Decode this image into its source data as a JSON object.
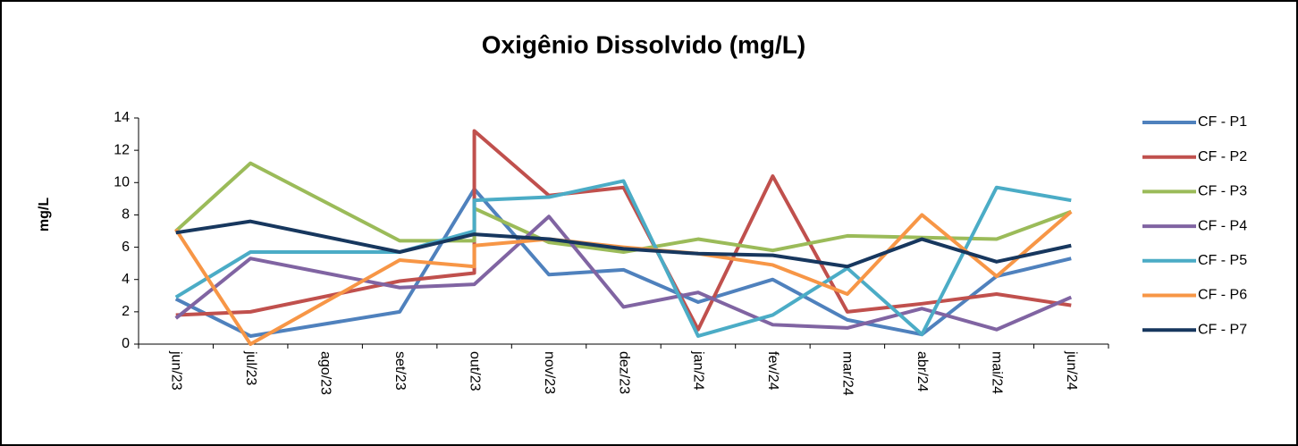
{
  "chart_data": {
    "type": "line",
    "title": "Oxigênio Dissolvido (mg/L)",
    "y_label": "mg/L",
    "xticks": [
      "jun/23",
      "jul/23",
      "ago/23",
      "set/23",
      "out/23",
      "nov/23",
      "dez/23",
      "jan/24",
      "fev/24",
      "mar/24",
      "abr/24",
      "mai/24",
      "jun/24"
    ],
    "x": [
      "jun/23",
      "jul/23",
      "set/23",
      "out/23",
      "out/23",
      "nov/23",
      "dez/23",
      "jan/24",
      "fev/24",
      "mar/24",
      "abr/24",
      "mai/24",
      "jun/24"
    ],
    "series": [
      {
        "name": "CF - P1",
        "color": "#4f81bd",
        "values": [
          2.8,
          0.5,
          2.0,
          9.6,
          9.6,
          4.3,
          4.6,
          2.6,
          4.0,
          1.5,
          0.6,
          4.2,
          5.3
        ]
      },
      {
        "name": "CF - P2",
        "color": "#c0504d",
        "values": [
          1.8,
          2.0,
          3.9,
          4.4,
          13.2,
          9.2,
          9.7,
          0.9,
          10.4,
          2.0,
          2.5,
          3.1,
          2.4
        ]
      },
      {
        "name": "CF - P3",
        "color": "#9bbb59",
        "values": [
          7.0,
          11.2,
          6.4,
          6.4,
          8.4,
          6.3,
          5.7,
          6.5,
          5.8,
          6.7,
          6.6,
          6.5,
          8.2
        ]
      },
      {
        "name": "CF - P4",
        "color": "#8064a2",
        "values": [
          1.6,
          5.3,
          3.5,
          3.7,
          3.7,
          7.9,
          2.3,
          3.2,
          1.2,
          1.0,
          2.2,
          0.9,
          2.9
        ]
      },
      {
        "name": "CF - P5",
        "color": "#4bacc6",
        "values": [
          2.9,
          5.7,
          5.7,
          7.0,
          8.9,
          9.1,
          10.1,
          0.5,
          1.8,
          4.7,
          0.6,
          9.7,
          8.9
        ]
      },
      {
        "name": "CF - P6",
        "color": "#f79646",
        "values": [
          7.1,
          0.0,
          5.2,
          4.8,
          6.1,
          6.5,
          6.0,
          5.6,
          4.9,
          3.1,
          8.0,
          4.2,
          8.2
        ]
      },
      {
        "name": "CF - P7",
        "color": "#17375e",
        "values": [
          6.9,
          7.6,
          5.7,
          6.8,
          6.8,
          6.5,
          5.9,
          5.6,
          5.5,
          4.8,
          6.5,
          5.1,
          6.1
        ]
      }
    ],
    "ylim": [
      0,
      14
    ],
    "yticks": [
      0,
      2,
      4,
      6,
      8,
      10,
      12,
      14
    ],
    "grid": false,
    "legend": "right"
  }
}
